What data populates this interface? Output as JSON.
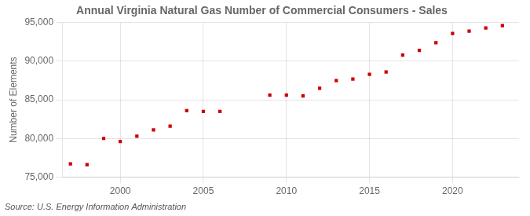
{
  "chart_data": {
    "type": "scatter",
    "title": "Annual Virginia Natural Gas Number of Commercial Consumers - Sales",
    "ylabel": "Number of Elements",
    "annotation": "Source: U.S. Energy Information Administration",
    "x": [
      1997,
      1998,
      1999,
      2000,
      2001,
      2002,
      2003,
      2004,
      2005,
      2006,
      2009,
      2010,
      2011,
      2012,
      2013,
      2014,
      2015,
      2016,
      2017,
      2018,
      2019,
      2020,
      2021,
      2022,
      2023
    ],
    "values": [
      76700,
      76600,
      80000,
      79600,
      80300,
      81100,
      81600,
      83600,
      83500,
      83500,
      85600,
      85600,
      85500,
      86500,
      87500,
      87700,
      88300,
      88600,
      90800,
      91400,
      92400,
      93600,
      93900,
      94300,
      94600
    ],
    "color": "#cc0000",
    "marker": "square",
    "xlim": [
      1996.5,
      2024.0
    ],
    "ylim": [
      75000,
      95000
    ],
    "xticks": [
      2000,
      2005,
      2010,
      2015,
      2020
    ],
    "yticks": [
      {
        "value": 75000,
        "label": "75,000"
      },
      {
        "value": 80000,
        "label": "80,000"
      },
      {
        "value": 85000,
        "label": "85,000"
      },
      {
        "value": 90000,
        "label": "90,000"
      },
      {
        "value": 95000,
        "label": "95,000"
      }
    ],
    "grid": true
  }
}
